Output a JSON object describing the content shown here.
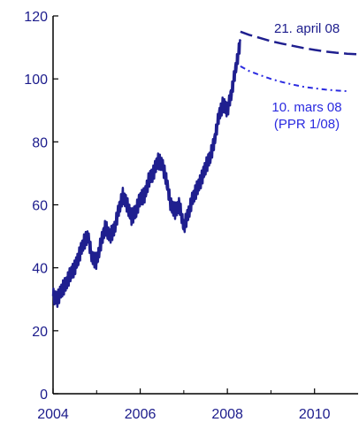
{
  "chart_data": {
    "type": "line",
    "title": "",
    "xlabel": "",
    "ylabel": "",
    "xlim": [
      2004,
      2011
    ],
    "ylim": [
      0,
      120
    ],
    "x_ticks": [
      "2004",
      "2006",
      "2008",
      "2010"
    ],
    "y_ticks": [
      "0",
      "20",
      "40",
      "60",
      "80",
      "100",
      "120"
    ],
    "grid": false,
    "legend": "none",
    "colors": {
      "history": "#1f1f8f",
      "forward_april": "#1f1f8f",
      "forward_march": "#2a2ae0",
      "axis": "#000000",
      "text": "#1c1c8c"
    },
    "series": [
      {
        "x": [
          2004.0,
          2004.1,
          2004.2,
          2004.3,
          2004.4,
          2004.5,
          2004.6,
          2004.7,
          2004.8,
          2004.9,
          2005.0,
          2005.1,
          2005.2,
          2005.3,
          2005.4,
          2005.5,
          2005.6,
          2005.7,
          2005.8,
          2005.9,
          2006.0,
          2006.1,
          2006.2,
          2006.3,
          2006.4,
          2006.5,
          2006.6,
          2006.7,
          2006.8,
          2006.9,
          2007.0,
          2007.1,
          2007.2,
          2007.3,
          2007.4,
          2007.5,
          2007.6,
          2007.7,
          2007.8,
          2007.9,
          2008.0,
          2008.1,
          2008.2,
          2008.3
        ],
        "values": [
          31,
          30,
          33,
          35,
          38,
          40,
          44,
          48,
          50,
          43,
          42,
          48,
          53,
          50,
          52,
          58,
          63,
          60,
          56,
          58,
          62,
          63,
          68,
          70,
          74,
          73,
          68,
          60,
          58,
          60,
          53,
          57,
          62,
          65,
          68,
          72,
          75,
          80,
          88,
          92,
          90,
          96,
          104,
          112
        ]
      },
      {
        "name": "21. april 08",
        "x": [
          2008.3,
          2008.5,
          2008.75,
          2009.0,
          2009.25,
          2009.5,
          2009.75,
          2010.0,
          2010.25,
          2010.5,
          2010.75,
          2011.0
        ],
        "values": [
          115,
          114,
          113,
          112,
          111.2,
          110.5,
          109.8,
          109.2,
          108.7,
          108.3,
          108.0,
          107.8
        ]
      },
      {
        "name": "10. mars 08\n(PPR 1/08)",
        "x": [
          2008.3,
          2008.5,
          2008.75,
          2009.0,
          2009.25,
          2009.5,
          2009.75,
          2010.0,
          2010.25,
          2010.5,
          2010.75
        ],
        "values": [
          104,
          102.5,
          101.2,
          100,
          99,
          98.2,
          97.5,
          97,
          96.6,
          96.3,
          96.1
        ]
      }
    ]
  }
}
